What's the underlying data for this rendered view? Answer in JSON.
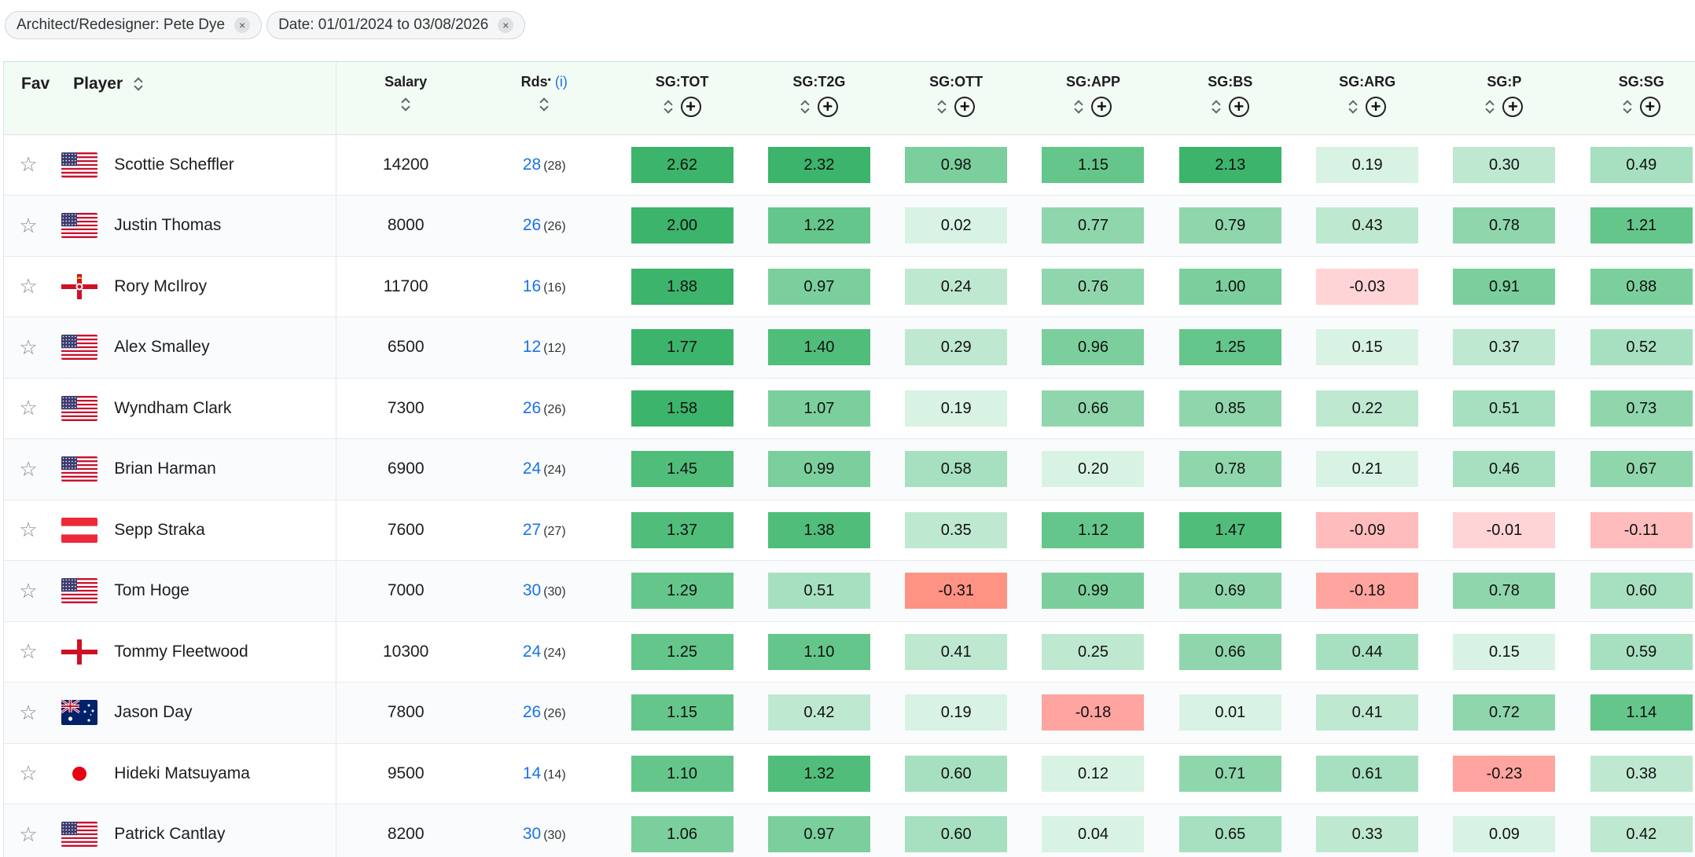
{
  "filters": [
    {
      "label": "Architect/Redesigner: Pete Dye"
    },
    {
      "label": "Date: 01/01/2024 to 03/08/2026"
    }
  ],
  "close_glyph": "×",
  "headers": {
    "fav": "Fav",
    "player": "Player",
    "salary": "Salary",
    "rds": "Rds",
    "rds_marker": "•",
    "rds_info": "(i)",
    "sg": [
      "SG:TOT",
      "SG:T2G",
      "SG:OTT",
      "SG:APP",
      "SG:BS",
      "SG:ARG",
      "SG:P",
      "SG:SG"
    ]
  },
  "colors": {
    "pos": [
      "#d8f3e3",
      "#bfe8d1",
      "#a7e0c0",
      "#90d6ad",
      "#7bcf9c",
      "#65c68b",
      "#50bd7b",
      "#3cb46c"
    ],
    "neg": [
      "#ffd4d6",
      "#ffbcbd",
      "#ffa49f",
      "#fe9283"
    ]
  },
  "players": [
    {
      "name": "Scottie Scheffler",
      "flag": "us-flag",
      "salary": "14200",
      "rds": "28",
      "rds_total": "(28)",
      "sg": [
        "2.62",
        "2.32",
        "0.98",
        "1.15",
        "2.13",
        "0.19",
        "0.30",
        "0.49"
      ]
    },
    {
      "name": "Justin Thomas",
      "flag": "us-flag",
      "salary": "8000",
      "rds": "26",
      "rds_total": "(26)",
      "sg": [
        "2.00",
        "1.22",
        "0.02",
        "0.77",
        "0.79",
        "0.43",
        "0.78",
        "1.21"
      ]
    },
    {
      "name": "Rory McIlroy",
      "flag": "northern-ireland-flag",
      "salary": "11700",
      "rds": "16",
      "rds_total": "(16)",
      "sg": [
        "1.88",
        "0.97",
        "0.24",
        "0.76",
        "1.00",
        "-0.03",
        "0.91",
        "0.88"
      ]
    },
    {
      "name": "Alex Smalley",
      "flag": "us-flag",
      "salary": "6500",
      "rds": "12",
      "rds_total": "(12)",
      "sg": [
        "1.77",
        "1.40",
        "0.29",
        "0.96",
        "1.25",
        "0.15",
        "0.37",
        "0.52"
      ]
    },
    {
      "name": "Wyndham Clark",
      "flag": "us-flag",
      "salary": "7300",
      "rds": "26",
      "rds_total": "(26)",
      "sg": [
        "1.58",
        "1.07",
        "0.19",
        "0.66",
        "0.85",
        "0.22",
        "0.51",
        "0.73"
      ]
    },
    {
      "name": "Brian Harman",
      "flag": "us-flag",
      "salary": "6900",
      "rds": "24",
      "rds_total": "(24)",
      "sg": [
        "1.45",
        "0.99",
        "0.58",
        "0.20",
        "0.78",
        "0.21",
        "0.46",
        "0.67"
      ]
    },
    {
      "name": "Sepp Straka",
      "flag": "austria-flag",
      "salary": "7600",
      "rds": "27",
      "rds_total": "(27)",
      "sg": [
        "1.37",
        "1.38",
        "0.35",
        "1.12",
        "1.47",
        "-0.09",
        "-0.01",
        "-0.11"
      ]
    },
    {
      "name": "Tom Hoge",
      "flag": "us-flag",
      "salary": "7000",
      "rds": "30",
      "rds_total": "(30)",
      "sg": [
        "1.29",
        "0.51",
        "-0.31",
        "0.99",
        "0.69",
        "-0.18",
        "0.78",
        "0.60"
      ]
    },
    {
      "name": "Tommy Fleetwood",
      "flag": "england-flag",
      "salary": "10300",
      "rds": "24",
      "rds_total": "(24)",
      "sg": [
        "1.25",
        "1.10",
        "0.41",
        "0.25",
        "0.66",
        "0.44",
        "0.15",
        "0.59"
      ]
    },
    {
      "name": "Jason Day",
      "flag": "australia-flag",
      "salary": "7800",
      "rds": "26",
      "rds_total": "(26)",
      "sg": [
        "1.15",
        "0.42",
        "0.19",
        "-0.18",
        "0.01",
        "0.41",
        "0.72",
        "1.14"
      ]
    },
    {
      "name": "Hideki Matsuyama",
      "flag": "japan-flag",
      "salary": "9500",
      "rds": "14",
      "rds_total": "(14)",
      "sg": [
        "1.10",
        "1.32",
        "0.60",
        "0.12",
        "0.71",
        "0.61",
        "-0.23",
        "0.38"
      ]
    },
    {
      "name": "Patrick Cantlay",
      "flag": "us-flag",
      "salary": "8200",
      "rds": "30",
      "rds_total": "(30)",
      "sg": [
        "1.06",
        "0.97",
        "0.60",
        "0.04",
        "0.65",
        "0.33",
        "0.09",
        "0.42"
      ]
    }
  ]
}
